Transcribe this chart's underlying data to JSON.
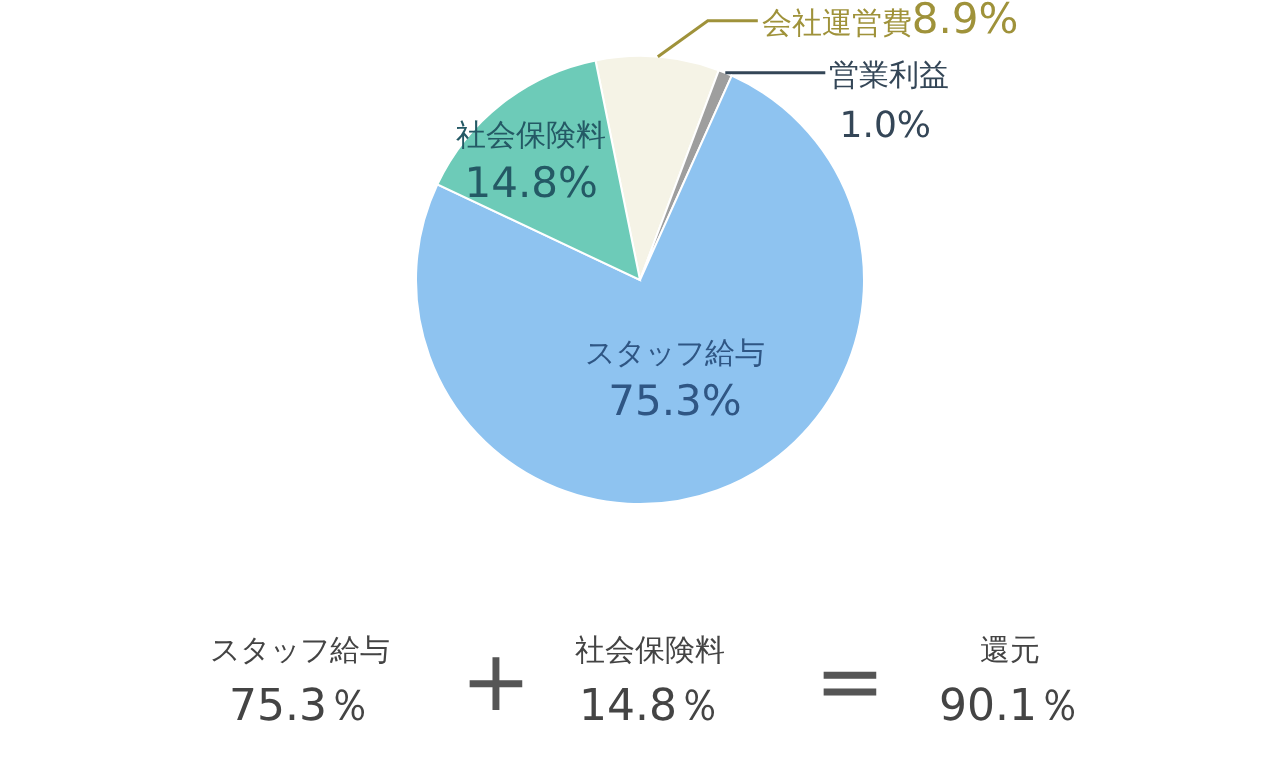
{
  "chart_data": {
    "type": "pie",
    "categories": [
      "会社運営費",
      "営業利益",
      "スタッフ給与",
      "社会保険料"
    ],
    "values": [
      8.9,
      1.0,
      75.3,
      14.8
    ],
    "colors": [
      "#f5f3e6",
      "#9e9e9e",
      "#8ec3f0",
      "#6dcbb8"
    ],
    "value_labels": [
      "8.9%",
      "1.0%",
      "75.3%",
      "14.8%"
    ],
    "annotations": [
      "スタッフ給与",
      "75.3％",
      "+",
      "社会保険料",
      "14.8％",
      "=",
      "還元",
      "90.1％"
    ]
  }
}
